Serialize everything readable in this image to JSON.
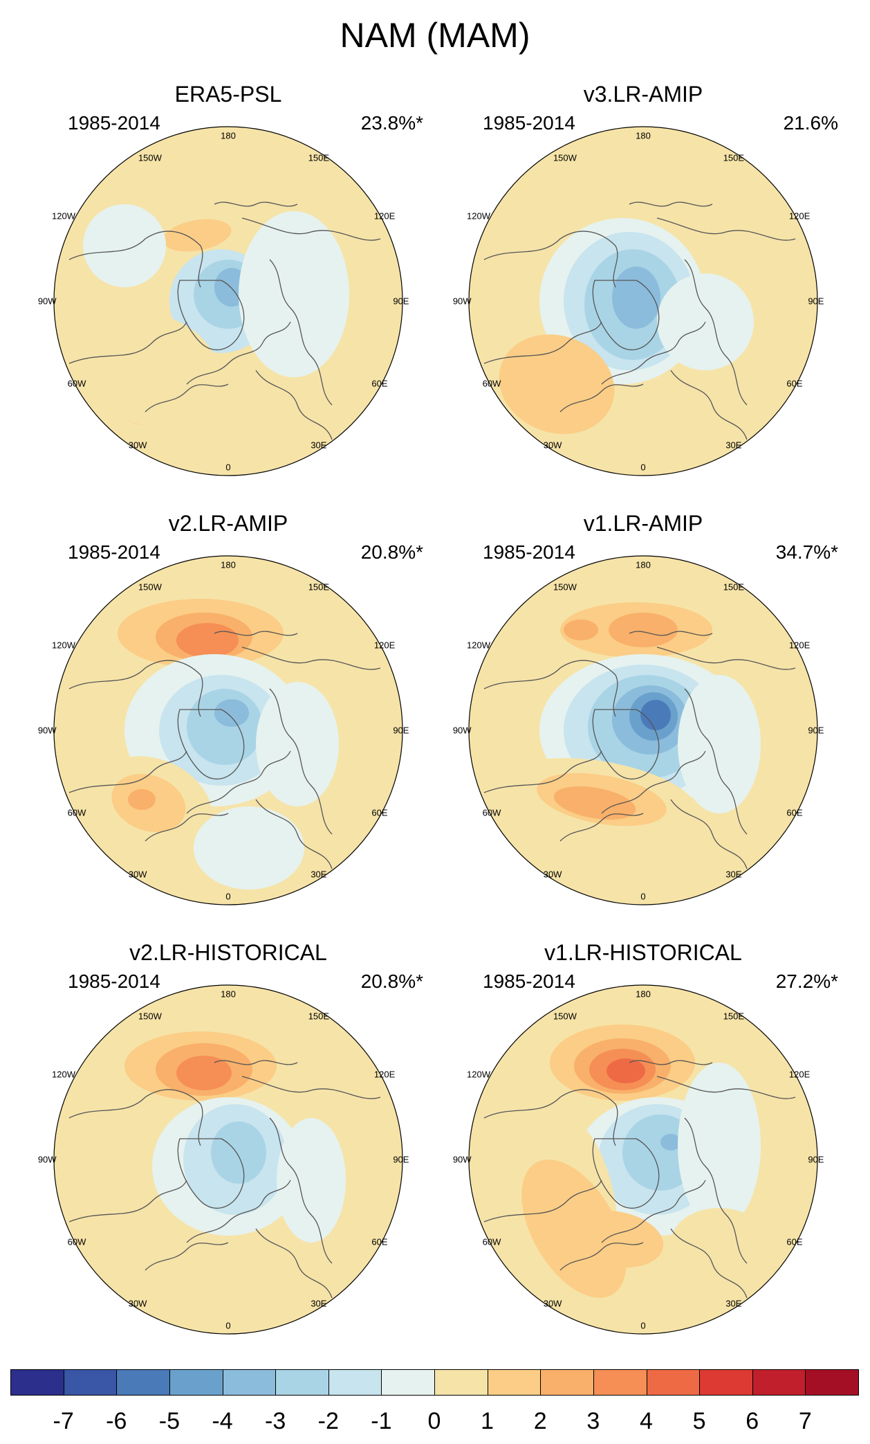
{
  "title": "NAM (MAM)",
  "lon_labels": [
    "180",
    "150W",
    "120W",
    "90W",
    "60W",
    "30W",
    "0",
    "30E",
    "60E",
    "90E",
    "120E",
    "150E"
  ],
  "panels": [
    {
      "title": "ERA5-PSL",
      "period": "1985-2014",
      "variance": "23.8%*"
    },
    {
      "title": "v3.LR-AMIP",
      "period": "1985-2014",
      "variance": "21.6%"
    },
    {
      "title": "v2.LR-AMIP",
      "period": "1985-2014",
      "variance": "20.8%*"
    },
    {
      "title": "v1.LR-AMIP",
      "period": "1985-2014",
      "variance": "34.7%*"
    },
    {
      "title": "v2.LR-HISTORICAL",
      "period": "1985-2014",
      "variance": "20.8%*"
    },
    {
      "title": "v1.LR-HISTORICAL",
      "period": "1985-2014",
      "variance": "27.2%*"
    }
  ],
  "colorbar": {
    "labels": [
      "-7",
      "-6",
      "-5",
      "-4",
      "-3",
      "-2",
      "-1",
      "0",
      "1",
      "2",
      "3",
      "4",
      "5",
      "6",
      "7"
    ],
    "colors": [
      "#2c2f8c",
      "#3a56a6",
      "#4a7ab8",
      "#6aa1cc",
      "#8cbcdc",
      "#a9d4e6",
      "#c8e4ee",
      "#e6f2ef",
      "#f6e3a8",
      "#fbcd86",
      "#f9b06a",
      "#f58f55",
      "#ee6a45",
      "#dc3a33",
      "#c21f2c",
      "#a50f26"
    ]
  },
  "colors": {
    "land_outline": "#555555",
    "map_border": "#000000"
  }
}
